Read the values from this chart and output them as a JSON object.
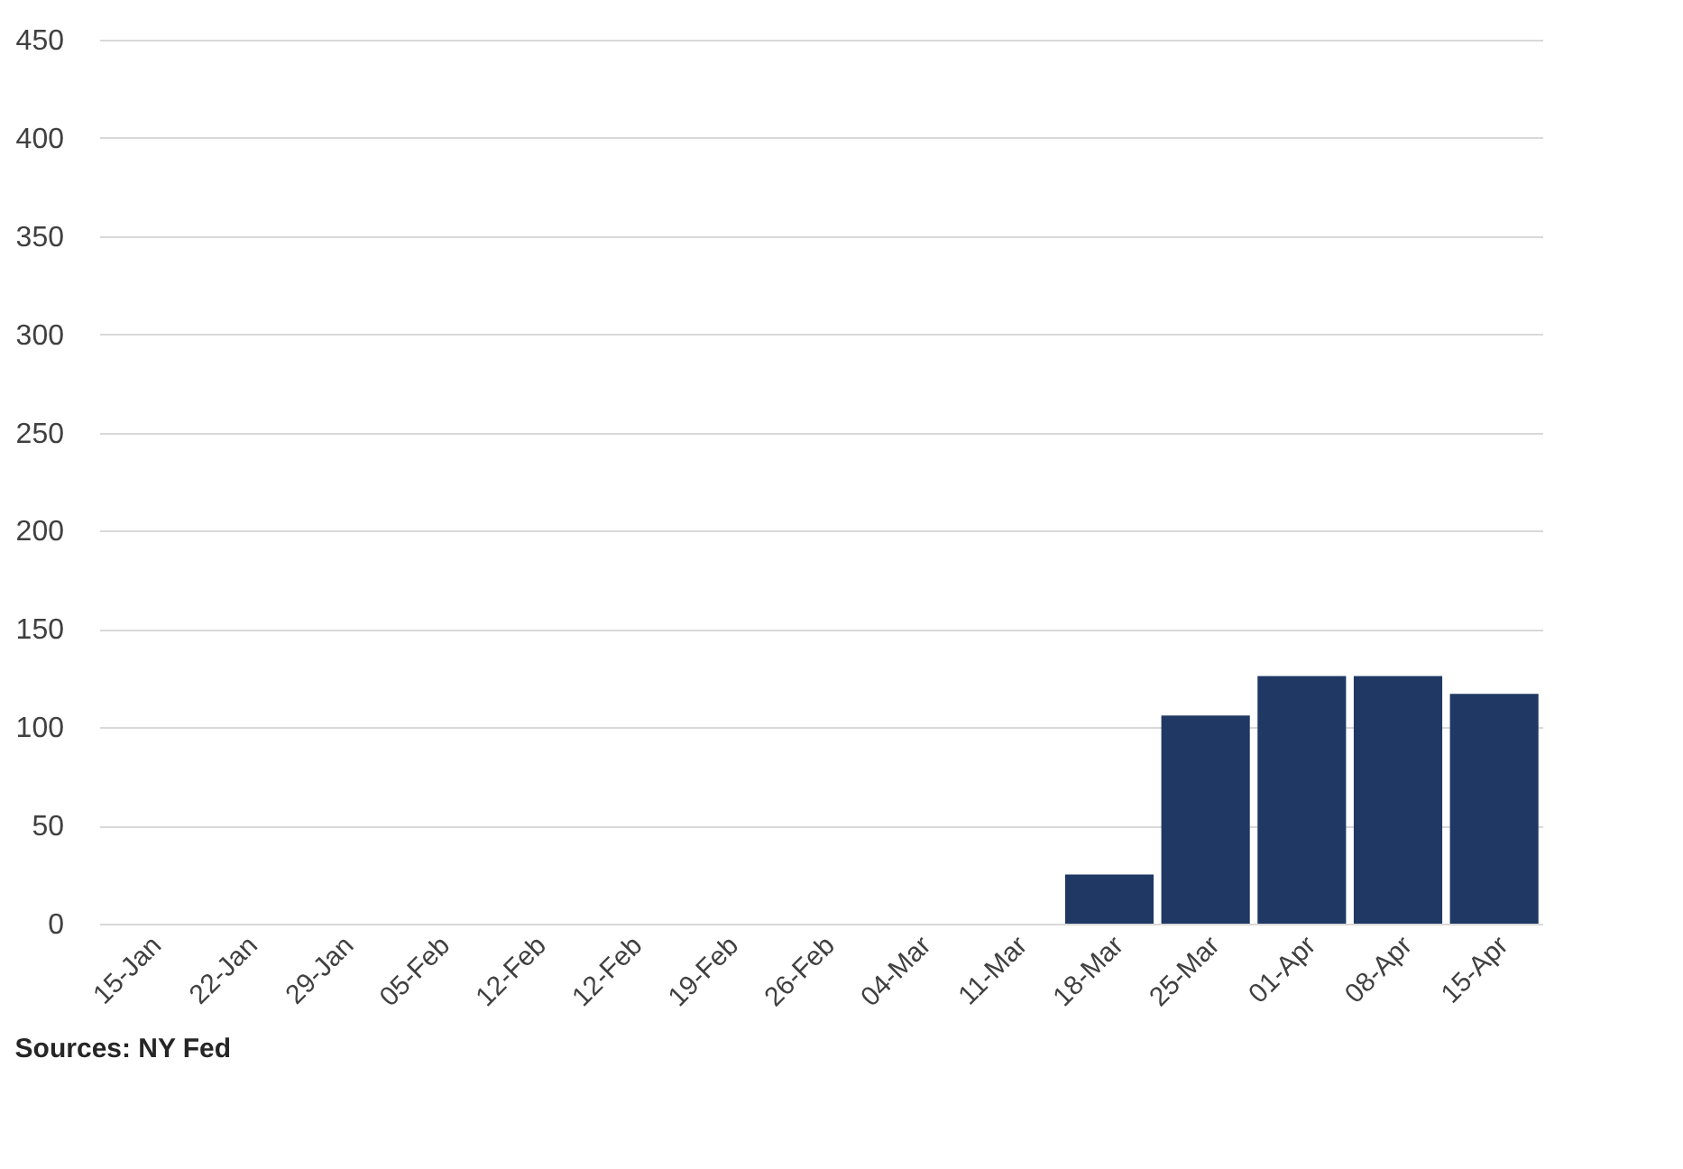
{
  "chart_data": {
    "type": "bar",
    "categories": [
      "15-Jan",
      "22-Jan",
      "29-Jan",
      "05-Feb",
      "12-Feb",
      "12-Feb",
      "19-Feb",
      "26-Feb",
      "04-Mar",
      "11-Mar",
      "18-Mar",
      "25-Mar",
      "01-Apr",
      "08-Apr",
      "15-Apr"
    ],
    "values": [
      null,
      null,
      null,
      null,
      null,
      null,
      null,
      null,
      null,
      null,
      25,
      106,
      126,
      126,
      117
    ],
    "color": "#203864",
    "ylim": [
      0,
      450
    ],
    "yticks": [
      0,
      50,
      100,
      150,
      200,
      250,
      300,
      350,
      400,
      450
    ],
    "grid": "y",
    "annotations": [
      "Sources: NY Fed"
    ]
  }
}
